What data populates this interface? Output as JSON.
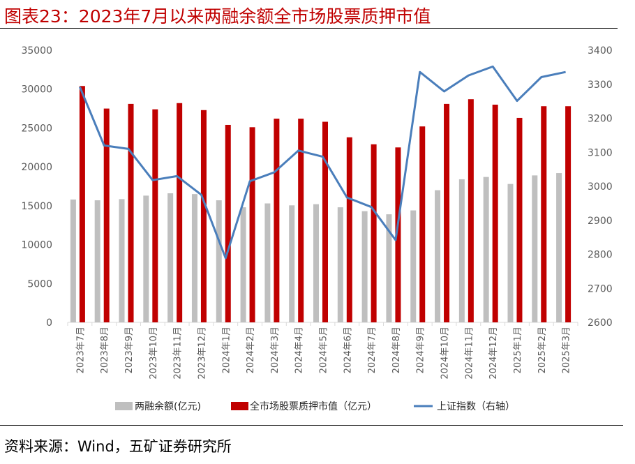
{
  "title": "图表23：2023年7月以来两融余额全市场股票质押市值",
  "source": "资料来源：Wind，五矿证券研究所",
  "chart_data": {
    "type": "bar",
    "categories": [
      "2023年7月",
      "2023年8月",
      "2023年9月",
      "2023年10月",
      "2023年11月",
      "2023年12月",
      "2024年1月",
      "2024年2月",
      "2024年3月",
      "2024年4月",
      "2024年5月",
      "2024年6月",
      "2024年7月",
      "2024年8月",
      "2024年9月",
      "2024年10月",
      "2024年11月",
      "2024年12月",
      "2025年1月",
      "2025年2月",
      "2025年3月"
    ],
    "series": [
      {
        "name": "两融余额(亿元)",
        "type": "bar",
        "axis": "left",
        "color": "#bfbfbf",
        "values": [
          15800,
          15700,
          15850,
          16300,
          16600,
          16500,
          15700,
          14800,
          15300,
          15050,
          15200,
          14800,
          14300,
          13900,
          14400,
          17000,
          18400,
          18700,
          17800,
          18900,
          19200
        ]
      },
      {
        "name": "全市场股票质押市值（亿元）",
        "type": "bar",
        "axis": "left",
        "color": "#c00000",
        "values": [
          30400,
          27500,
          28100,
          27400,
          28200,
          27300,
          25400,
          25100,
          26200,
          26200,
          25800,
          23800,
          22900,
          22500,
          25200,
          28100,
          28700,
          28000,
          26300,
          27800,
          27800
        ]
      },
      {
        "name": "上证指数（右轴）",
        "type": "line",
        "axis": "right",
        "color": "#4a7ebb",
        "values": [
          3292,
          3120,
          3110,
          3018,
          3030,
          2975,
          2789,
          3015,
          3041,
          3105,
          3087,
          2967,
          2939,
          2842,
          3336,
          3279,
          3326,
          3352,
          3251,
          3321,
          3336
        ]
      }
    ],
    "yleft": {
      "min": 0,
      "max": 35000,
      "ticks": [
        0,
        5000,
        10000,
        15000,
        20000,
        25000,
        30000,
        35000
      ]
    },
    "yright": {
      "min": 2600,
      "max": 3400,
      "ticks": [
        2600,
        2700,
        2800,
        2900,
        3000,
        3100,
        3200,
        3300,
        3400
      ]
    },
    "legend_position": "bottom",
    "grid": false
  }
}
